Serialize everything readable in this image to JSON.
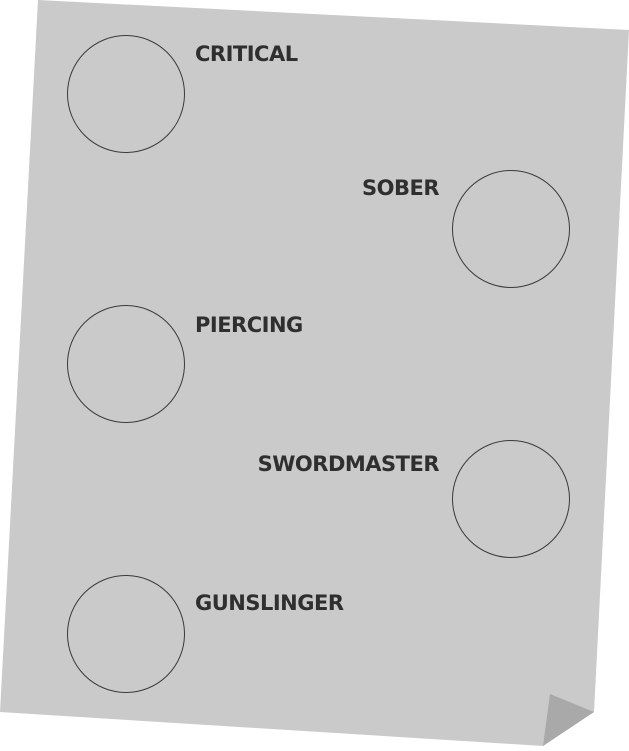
{
  "sheet": {
    "paper_color": "#cacaca",
    "fold_color": "#a9a9a9",
    "ink_color": "#2f2f2f"
  },
  "traits": [
    {
      "label": "CRITICAL"
    },
    {
      "label": "SOBER"
    },
    {
      "label": "PIERCING"
    },
    {
      "label": "SWORDMASTER"
    },
    {
      "label": "GUNSLINGER"
    }
  ]
}
